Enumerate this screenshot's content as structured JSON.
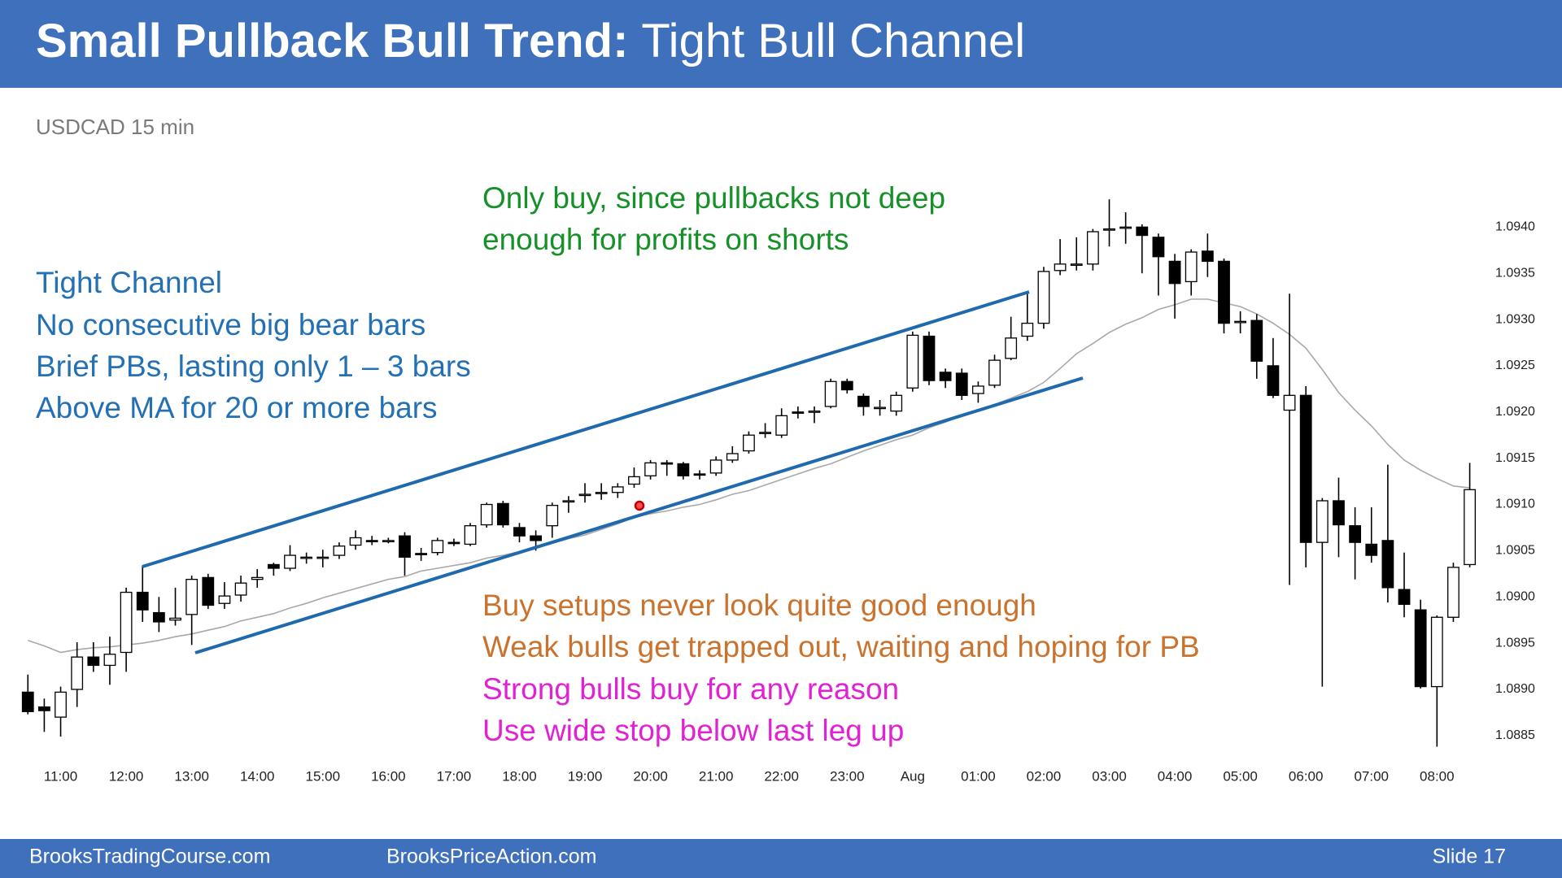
{
  "chart_data": {
    "type": "candlestick",
    "title": {
      "main": "Small Pullback Bull Trend:",
      "sub": "Tight Bull Channel"
    },
    "subtitle": "USDCAD 15 min",
    "annotations": [
      {
        "color": "#2470b4",
        "lines": [
          "Tight Channel",
          "No consecutive big bear bars",
          "Brief PBs, lasting only 1 – 3 bars",
          "Above MA for 20 or more bars"
        ]
      },
      {
        "color": "#16912a",
        "lines": [
          "Only buy, since pullbacks not deep",
          "enough for profits on shorts"
        ]
      },
      {
        "color": "#c9732e",
        "lines": [
          "Buy setups never look quite good enough",
          "Weak bulls get trapped out, waiting and hoping for PB"
        ]
      },
      {
        "color": "#e021d4",
        "lines": [
          "Strong bulls buy for any reason",
          "Use wide stop below last leg up"
        ]
      }
    ],
    "categories": [
      null,
      null,
      "11:00",
      null,
      null,
      null,
      "12:00",
      null,
      null,
      null,
      "13:00",
      null,
      null,
      null,
      "14:00",
      null,
      null,
      null,
      "15:00",
      null,
      null,
      null,
      "16:00",
      null,
      null,
      null,
      "17:00",
      null,
      null,
      null,
      "18:00",
      null,
      null,
      null,
      "19:00",
      null,
      null,
      null,
      "20:00",
      null,
      null,
      null,
      "21:00",
      null,
      null,
      null,
      "22:00",
      null,
      null,
      null,
      "23:00",
      null,
      null,
      null,
      "Aug",
      null,
      null,
      null,
      "01:00",
      null,
      null,
      null,
      "02:00",
      null,
      null,
      null,
      "03:00",
      null,
      null,
      null,
      "04:00",
      null,
      null,
      null,
      "05:00",
      null,
      null,
      null,
      "06:00",
      null,
      null,
      null,
      "07:00",
      null,
      null,
      null,
      "08:00",
      null,
      null
    ],
    "open": [
      1.08897,
      1.08881,
      1.0887,
      1.089,
      1.08935,
      1.08926,
      1.0894,
      1.09005,
      1.08983,
      1.08975,
      1.08981,
      1.09021,
      1.08993,
      1.09002,
      1.09019,
      1.09035,
      1.09031,
      1.09042,
      1.09043,
      1.09045,
      1.09056,
      1.09061,
      1.09061,
      1.09066,
      1.09047,
      1.09048,
      1.09059,
      1.09057,
      1.09078,
      1.09101,
      1.09075,
      1.09066,
      1.09077,
      1.09104,
      1.09111,
      1.09113,
      1.09113,
      1.09122,
      1.09131,
      1.09145,
      1.09144,
      1.09133,
      1.09134,
      1.09148,
      1.09158,
      1.09178,
      1.09175,
      1.092,
      1.09201,
      1.09206,
      1.09233,
      1.09217,
      1.09205,
      1.09201,
      1.09226,
      1.09282,
      1.09243,
      1.09242,
      1.0922,
      1.09229,
      1.09258,
      1.09282,
      1.09296,
      1.09353,
      1.0936,
      1.0936,
      1.09397,
      1.094,
      1.094,
      1.09389,
      1.09363,
      1.09341,
      1.09374,
      1.09363,
      1.09298,
      1.09299,
      1.0925,
      1.09202,
      1.09218,
      1.09059,
      1.09104,
      1.09077,
      1.09057,
      1.09061,
      1.09008,
      1.08986,
      1.08903,
      1.08978,
      1.09035
    ],
    "high": [
      1.08916,
      1.0889,
      1.08903,
      1.08951,
      1.08951,
      1.08957,
      1.0901,
      1.09034,
      1.09,
      1.0901,
      1.09023,
      1.09025,
      1.09016,
      1.09023,
      1.0903,
      1.09037,
      1.09056,
      1.09048,
      1.09051,
      1.09059,
      1.09072,
      1.09066,
      1.09064,
      1.0907,
      1.09053,
      1.09064,
      1.09063,
      1.0908,
      1.09102,
      1.09104,
      1.0908,
      1.09072,
      1.09102,
      1.09109,
      1.09123,
      1.09123,
      1.09123,
      1.0914,
      1.09148,
      1.09148,
      1.09146,
      1.09137,
      1.09152,
      1.09163,
      1.09179,
      1.09188,
      1.09204,
      1.09206,
      1.09206,
      1.09236,
      1.09236,
      1.0922,
      1.09213,
      1.09222,
      1.09287,
      1.09287,
      1.09247,
      1.09247,
      1.09233,
      1.09262,
      1.09303,
      1.0933,
      1.09357,
      1.09387,
      1.09389,
      1.09398,
      1.0943,
      1.09416,
      1.09403,
      1.09393,
      1.09371,
      1.09376,
      1.09393,
      1.09366,
      1.09309,
      1.09306,
      1.0928,
      1.09328,
      1.09228,
      1.09107,
      1.09129,
      1.09097,
      1.09097,
      1.09143,
      1.09048,
      1.08997,
      1.0898,
      1.09037,
      1.09145
    ],
    "low": [
      1.08873,
      1.08854,
      1.08849,
      1.08881,
      1.08919,
      1.08905,
      1.08919,
      1.08973,
      1.08962,
      1.08969,
      1.08948,
      1.08987,
      1.08987,
      1.08995,
      1.0901,
      1.09023,
      1.09028,
      1.09036,
      1.09032,
      1.09041,
      1.09051,
      1.09056,
      1.09058,
      1.09023,
      1.09039,
      1.09045,
      1.09055,
      1.09055,
      1.09075,
      1.09075,
      1.09059,
      1.0905,
      1.09064,
      1.09091,
      1.09102,
      1.09105,
      1.09107,
      1.09118,
      1.09127,
      1.09131,
      1.09127,
      1.09127,
      1.09131,
      1.09145,
      1.09155,
      1.09172,
      1.09172,
      1.09193,
      1.09188,
      1.09204,
      1.0922,
      1.09196,
      1.09196,
      1.09196,
      1.09222,
      1.09229,
      1.09226,
      1.09213,
      1.0921,
      1.09226,
      1.09256,
      1.09277,
      1.0929,
      1.09348,
      1.09353,
      1.09353,
      1.09379,
      1.09382,
      1.0935,
      1.09326,
      1.09301,
      1.09326,
      1.09346,
      1.09285,
      1.09285,
      1.09236,
      1.09215,
      1.09013,
      1.09032,
      1.08903,
      1.09043,
      1.09019,
      1.09037,
      1.08994,
      1.08978,
      1.08901,
      1.08838,
      1.08973,
      1.09032
    ],
    "close": [
      1.08876,
      1.08877,
      1.08897,
      1.08935,
      1.08926,
      1.08938,
      1.09005,
      1.08986,
      1.08973,
      1.08977,
      1.09019,
      1.08991,
      1.09001,
      1.09015,
      1.09021,
      1.09031,
      1.09045,
      1.09043,
      1.09043,
      1.09055,
      1.09064,
      1.0906,
      1.09061,
      1.09043,
      1.09046,
      1.09061,
      1.09058,
      1.09077,
      1.091,
      1.09078,
      1.09066,
      1.09061,
      1.09099,
      1.09104,
      1.09111,
      1.09113,
      1.09119,
      1.0913,
      1.09145,
      1.09144,
      1.09131,
      1.09132,
      1.09148,
      1.09155,
      1.09175,
      1.09178,
      1.09196,
      1.09199,
      1.09201,
      1.09233,
      1.09224,
      1.09206,
      1.09205,
      1.09218,
      1.09283,
      1.09234,
      1.09234,
      1.09218,
      1.09228,
      1.09256,
      1.0928,
      1.09296,
      1.09352,
      1.0936,
      1.0936,
      1.09395,
      1.09398,
      1.094,
      1.09391,
      1.09368,
      1.09339,
      1.09373,
      1.09363,
      1.09296,
      1.09298,
      1.09255,
      1.09218,
      1.09218,
      1.09059,
      1.09104,
      1.09078,
      1.09059,
      1.09045,
      1.0901,
      1.08992,
      1.08903,
      1.08978,
      1.09032,
      1.09116
    ],
    "up_color": "#ffffff",
    "down_color": "#000000",
    "moving_average": {
      "color": "#a8a8a8",
      "values": [
        1.08953,
        1.08947,
        1.0894,
        1.08943,
        1.08945,
        1.08946,
        1.08948,
        1.0895,
        1.08953,
        1.08957,
        1.0896,
        1.08964,
        1.08968,
        1.08974,
        1.08978,
        1.08982,
        1.08988,
        1.08993,
        1.08999,
        1.09004,
        1.09009,
        1.09014,
        1.09019,
        1.09022,
        1.09028,
        1.09031,
        1.09034,
        1.09037,
        1.09042,
        1.09045,
        1.09049,
        1.09053,
        1.09058,
        1.09063,
        1.09067,
        1.09073,
        1.09079,
        1.09086,
        1.0909,
        1.09093,
        1.09097,
        1.091,
        1.09105,
        1.09111,
        1.09115,
        1.09121,
        1.09127,
        1.09133,
        1.09139,
        1.09144,
        1.09151,
        1.09158,
        1.09164,
        1.0917,
        1.09175,
        1.09183,
        1.09189,
        1.09196,
        1.09202,
        1.09208,
        1.09215,
        1.09222,
        1.09232,
        1.09247,
        1.09263,
        1.09274,
        1.09286,
        1.09295,
        1.09302,
        1.09311,
        1.09316,
        1.09322,
        1.09322,
        1.09318,
        1.09314,
        1.09306,
        1.09296,
        1.09284,
        1.09269,
        1.09246,
        1.09221,
        1.09202,
        1.09185,
        1.09165,
        1.09148,
        1.09137,
        1.09128,
        1.0912,
        1.09118
      ]
    },
    "ylim": [
      1.08822,
      1.09441
    ],
    "yticks": [
      1.0885,
      {
        "value": 1.089,
        "label": "1.0890"
      },
      1.0895,
      {
        "value": 1.09,
        "label": "1.0900"
      },
      1.0905,
      {
        "value": 1.091,
        "label": "1.0910"
      },
      1.0915,
      {
        "value": 1.092,
        "label": "1.0920"
      },
      1.0925,
      {
        "value": 1.093,
        "label": "1.0930"
      },
      1.0935,
      {
        "value": 1.094,
        "label": "1.0940"
      }
    ],
    "footer": {
      "left": "BrooksTradingCourse.com",
      "center": "BrooksPriceAction.com",
      "right": "Slide  17"
    }
  }
}
